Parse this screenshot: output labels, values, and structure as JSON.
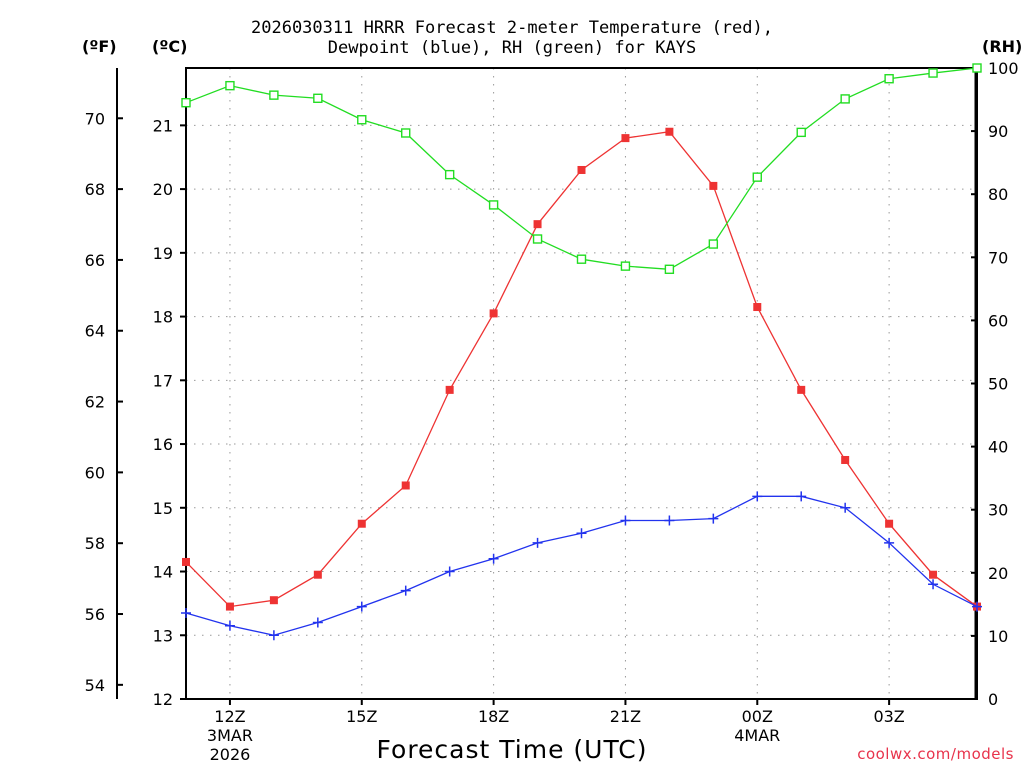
{
  "header": {
    "title_line1": "2026030311 HRRR Forecast 2-meter Temperature (red),",
    "title_line2": "Dewpoint (blue), RH (green) for KAYS",
    "unit_f": "(ºF)",
    "unit_c": "(ºC)",
    "unit_rh": "(RH)"
  },
  "footer": {
    "xlabel": "Forecast Time (UTC)",
    "credit": "coolwx.com/models"
  },
  "chart_data": {
    "type": "line",
    "title": "2026030311 HRRR Forecast 2-meter Temperature (red), Dewpoint (blue), RH (green) for KAYS",
    "xlabel": "Forecast Time (UTC)",
    "ylabel_left_outer": "(ºF)",
    "ylabel_left_inner": "(ºC)",
    "ylabel_right": "(RH)",
    "x": [
      11,
      12,
      13,
      14,
      15,
      16,
      17,
      18,
      19,
      20,
      21,
      22,
      23,
      24,
      25,
      26,
      27,
      28,
      29
    ],
    "xlim": [
      11,
      29
    ],
    "ylim_c": [
      12,
      21.9
    ],
    "ylim_rh": [
      0,
      100
    ],
    "grid": true,
    "x_ticks": [
      {
        "hour": 12,
        "lines": [
          "12Z",
          "3MAR",
          "2026"
        ]
      },
      {
        "hour": 15,
        "lines": [
          "15Z"
        ]
      },
      {
        "hour": 18,
        "lines": [
          "18Z"
        ]
      },
      {
        "hour": 21,
        "lines": [
          "21Z"
        ]
      },
      {
        "hour": 24,
        "lines": [
          "00Z",
          "4MAR"
        ]
      },
      {
        "hour": 27,
        "lines": [
          "03Z"
        ]
      }
    ],
    "celsius_ticks": [
      12,
      13,
      14,
      15,
      16,
      17,
      18,
      19,
      20,
      21
    ],
    "fahrenheit_ticks": [
      54,
      56,
      58,
      60,
      62,
      64,
      66,
      68,
      70
    ],
    "rh_ticks": [
      0,
      10,
      20,
      30,
      40,
      50,
      60,
      70,
      80,
      90,
      100
    ],
    "series": [
      {
        "name": "Temperature",
        "axis": "c",
        "color": "#ee3333",
        "marker": "filled-square",
        "values": [
          14.15,
          13.45,
          13.55,
          13.95,
          14.75,
          15.35,
          16.85,
          18.05,
          19.45,
          20.3,
          20.8,
          20.9,
          20.05,
          18.15,
          16.85,
          15.75,
          14.75,
          13.95,
          13.45
        ]
      },
      {
        "name": "Dewpoint",
        "axis": "c",
        "color": "#2233ee",
        "marker": "plus",
        "values": [
          13.35,
          13.15,
          13.0,
          13.2,
          13.45,
          13.7,
          14.0,
          14.2,
          14.45,
          14.6,
          14.8,
          14.8,
          14.83,
          15.18,
          15.18,
          15.0,
          14.45,
          13.8,
          13.45
        ]
      },
      {
        "name": "RH",
        "axis": "rh",
        "color": "#22dd22",
        "marker": "open-square",
        "values": [
          94.5,
          97.2,
          95.7,
          95.2,
          91.8,
          89.7,
          83.1,
          78.3,
          72.9,
          69.7,
          68.6,
          68.1,
          72.1,
          82.7,
          89.8,
          95.1,
          98.3,
          99.2,
          100
        ]
      }
    ]
  }
}
